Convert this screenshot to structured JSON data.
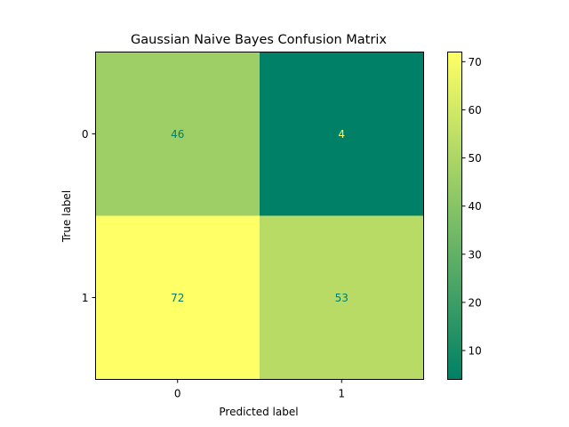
{
  "chart_data": {
    "type": "heatmap",
    "title": "Gaussian Naive Bayes Confusion Matrix",
    "xlabel": "Predicted label",
    "ylabel": "True label",
    "x_categories": [
      "0",
      "1"
    ],
    "y_categories": [
      "0",
      "1"
    ],
    "values": [
      [
        46,
        4
      ],
      [
        72,
        53
      ]
    ],
    "colormap": "summer",
    "colorbar": {
      "range": [
        4,
        72
      ],
      "ticks": [
        "10",
        "20",
        "30",
        "40",
        "50",
        "60",
        "70"
      ]
    },
    "grid": false
  }
}
